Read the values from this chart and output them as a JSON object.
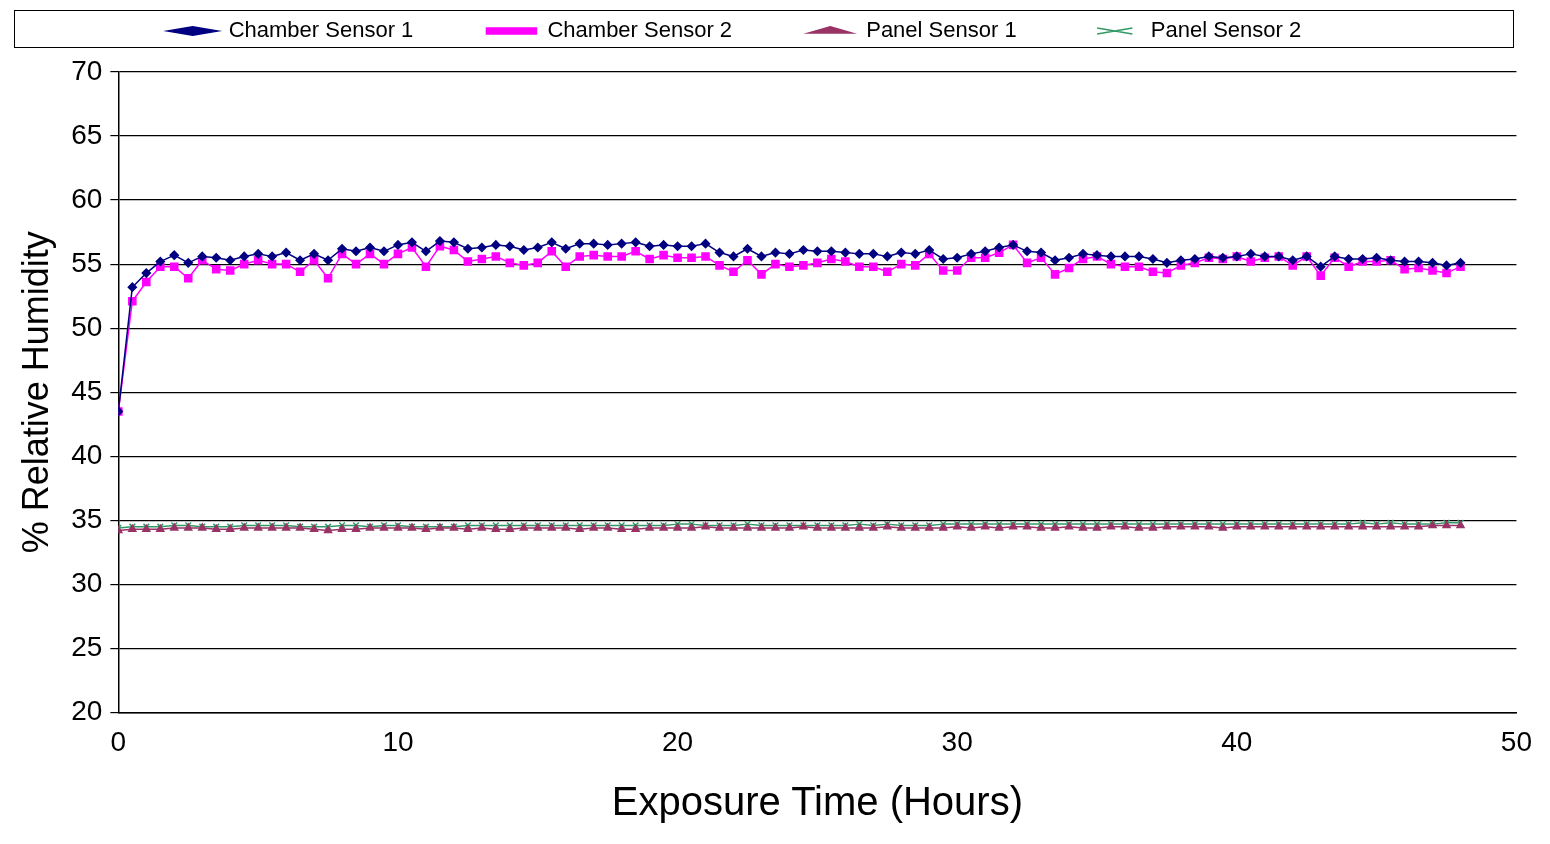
{
  "chart_data": {
    "type": "line",
    "xlabel": "Exposure Time (Hours)",
    "ylabel": "% Relative Humidity",
    "xlim": [
      0,
      50
    ],
    "xticks": [
      0,
      10,
      20,
      30,
      40,
      50
    ],
    "ylim": [
      20,
      70
    ],
    "yticks": [
      20,
      25,
      30,
      35,
      40,
      45,
      50,
      55,
      60,
      65,
      70
    ],
    "grid": "y",
    "legend": "top",
    "x": [
      0,
      0.5,
      1,
      1.5,
      2,
      2.5,
      3,
      3.5,
      4,
      4.5,
      5,
      5.5,
      6,
      6.5,
      7,
      7.5,
      8,
      8.5,
      9,
      9.5,
      10,
      10.5,
      11,
      11.5,
      12,
      12.5,
      13,
      13.5,
      14,
      14.5,
      15,
      15.5,
      16,
      16.5,
      17,
      17.5,
      18,
      18.5,
      19,
      19.5,
      20,
      20.5,
      21,
      21.5,
      22,
      22.5,
      23,
      23.5,
      24,
      24.5,
      25,
      25.5,
      26,
      26.5,
      27,
      27.5,
      28,
      28.5,
      29,
      29.5,
      30,
      30.5,
      31,
      31.5,
      32,
      32.5,
      33,
      33.5,
      34,
      34.5,
      35,
      35.5,
      36,
      36.5,
      37,
      37.5,
      38,
      38.5,
      39,
      39.5,
      40,
      40.5,
      41,
      41.5,
      42,
      42.5,
      43,
      43.5,
      44,
      44.5,
      45,
      45.5,
      46,
      46.5,
      47,
      47.5,
      48
    ],
    "series": [
      {
        "name": "Chamber Sensor 1",
        "color": "#000080",
        "marker": "diamond",
        "values": [
          43.5,
          53.2,
          54.3,
          55.2,
          55.7,
          55.1,
          55.6,
          55.5,
          55.3,
          55.6,
          55.8,
          55.6,
          55.9,
          55.3,
          55.8,
          55.3,
          56.2,
          56.0,
          56.3,
          56.0,
          56.5,
          56.7,
          56.0,
          56.8,
          56.7,
          56.2,
          56.3,
          56.5,
          56.4,
          56.1,
          56.3,
          56.7,
          56.2,
          56.6,
          56.6,
          56.5,
          56.6,
          56.7,
          56.4,
          56.5,
          56.4,
          56.4,
          56.6,
          55.9,
          55.6,
          56.2,
          55.6,
          55.9,
          55.8,
          56.1,
          56.0,
          56.0,
          55.9,
          55.8,
          55.8,
          55.6,
          55.9,
          55.8,
          56.1,
          55.4,
          55.5,
          55.8,
          56.0,
          56.3,
          56.5,
          56.0,
          55.9,
          55.3,
          55.5,
          55.8,
          55.7,
          55.6,
          55.6,
          55.6,
          55.4,
          55.1,
          55.3,
          55.4,
          55.6,
          55.5,
          55.6,
          55.8,
          55.6,
          55.6,
          55.3,
          55.6,
          54.8,
          55.6,
          55.4,
          55.4,
          55.5,
          55.3,
          55.2,
          55.2,
          55.1,
          54.9,
          55.1
        ]
      },
      {
        "name": "Chamber Sensor 2",
        "color": "#ff00ff",
        "marker": "square",
        "values": [
          43.5,
          52.1,
          53.6,
          54.8,
          54.8,
          53.9,
          55.3,
          54.6,
          54.5,
          55.0,
          55.3,
          55.0,
          55.0,
          54.4,
          55.3,
          53.9,
          55.8,
          55.0,
          55.8,
          55.0,
          55.8,
          56.3,
          54.8,
          56.4,
          56.1,
          55.2,
          55.4,
          55.6,
          55.1,
          54.9,
          55.1,
          56.0,
          54.8,
          55.6,
          55.7,
          55.6,
          55.6,
          56.0,
          55.4,
          55.7,
          55.5,
          55.5,
          55.6,
          54.9,
          54.4,
          55.3,
          54.2,
          55.0,
          54.8,
          54.9,
          55.1,
          55.4,
          55.2,
          54.8,
          54.8,
          54.4,
          55.0,
          54.9,
          55.8,
          54.5,
          54.5,
          55.5,
          55.5,
          55.9,
          56.5,
          55.1,
          55.5,
          54.2,
          54.7,
          55.4,
          55.6,
          55.0,
          54.8,
          54.8,
          54.4,
          54.3,
          54.9,
          55.1,
          55.5,
          55.4,
          55.6,
          55.2,
          55.5,
          55.6,
          54.9,
          55.6,
          54.1,
          55.5,
          54.8,
          55.2,
          55.2,
          55.3,
          54.6,
          54.7,
          54.5,
          54.3,
          54.8
        ]
      },
      {
        "name": "Panel Sensor 1",
        "color": "#993366",
        "marker": "triangle",
        "values": [
          34.2,
          34.3,
          34.3,
          34.3,
          34.4,
          34.4,
          34.4,
          34.3,
          34.3,
          34.4,
          34.4,
          34.4,
          34.4,
          34.4,
          34.3,
          34.2,
          34.3,
          34.3,
          34.4,
          34.4,
          34.4,
          34.4,
          34.3,
          34.4,
          34.4,
          34.3,
          34.4,
          34.3,
          34.3,
          34.4,
          34.4,
          34.4,
          34.4,
          34.3,
          34.4,
          34.4,
          34.3,
          34.3,
          34.4,
          34.4,
          34.4,
          34.4,
          34.5,
          34.4,
          34.4,
          34.4,
          34.4,
          34.4,
          34.4,
          34.5,
          34.4,
          34.4,
          34.4,
          34.4,
          34.4,
          34.5,
          34.4,
          34.4,
          34.4,
          34.4,
          34.5,
          34.4,
          34.5,
          34.4,
          34.5,
          34.5,
          34.4,
          34.4,
          34.5,
          34.4,
          34.4,
          34.5,
          34.5,
          34.4,
          34.4,
          34.5,
          34.5,
          34.5,
          34.5,
          34.4,
          34.5,
          34.5,
          34.5,
          34.5,
          34.5,
          34.5,
          34.5,
          34.5,
          34.5,
          34.5,
          34.5,
          34.5,
          34.5,
          34.5,
          34.6,
          34.6,
          34.6
        ]
      },
      {
        "name": "Panel Sensor 2",
        "color": "#339966",
        "marker": "cross",
        "values": [
          34.4,
          34.5,
          34.5,
          34.5,
          34.6,
          34.6,
          34.5,
          34.5,
          34.5,
          34.6,
          34.6,
          34.6,
          34.6,
          34.5,
          34.5,
          34.5,
          34.6,
          34.6,
          34.5,
          34.6,
          34.6,
          34.5,
          34.5,
          34.5,
          34.5,
          34.6,
          34.6,
          34.6,
          34.6,
          34.6,
          34.6,
          34.6,
          34.6,
          34.6,
          34.6,
          34.6,
          34.6,
          34.6,
          34.6,
          34.6,
          34.7,
          34.7,
          34.6,
          34.6,
          34.6,
          34.7,
          34.6,
          34.6,
          34.6,
          34.6,
          34.6,
          34.6,
          34.6,
          34.7,
          34.6,
          34.7,
          34.6,
          34.6,
          34.6,
          34.7,
          34.7,
          34.7,
          34.7,
          34.7,
          34.7,
          34.7,
          34.7,
          34.7,
          34.7,
          34.7,
          34.7,
          34.7,
          34.7,
          34.7,
          34.7,
          34.7,
          34.7,
          34.7,
          34.7,
          34.7,
          34.7,
          34.7,
          34.7,
          34.7,
          34.7,
          34.7,
          34.7,
          34.7,
          34.7,
          34.8,
          34.7,
          34.8,
          34.7,
          34.7,
          34.7,
          34.8,
          34.8
        ]
      }
    ]
  }
}
